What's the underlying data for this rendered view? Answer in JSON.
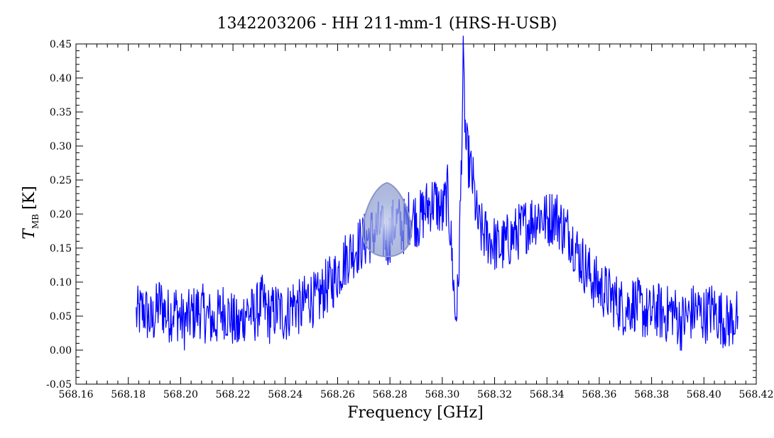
{
  "chart_data": {
    "type": "line",
    "title": "1342203206 - HH 211-mm-1 (HRS-H-USB)",
    "xlabel": "Frequency [GHz]",
    "ylabel_main": "T",
    "ylabel_sub": "MB",
    "ylabel_unit": "[K]",
    "xlim": [
      568.16,
      568.42
    ],
    "ylim": [
      -0.05,
      0.45
    ],
    "x_ticks": [
      "568.16",
      "568.18",
      "568.20",
      "568.22",
      "568.24",
      "568.26",
      "568.28",
      "568.30",
      "568.32",
      "568.34",
      "568.36",
      "568.38",
      "568.40",
      "568.42"
    ],
    "y_ticks": [
      "-0.05",
      "0.00",
      "0.05",
      "0.10",
      "0.15",
      "0.20",
      "0.25",
      "0.30",
      "0.35",
      "0.40",
      "0.45"
    ],
    "series_color": "#0000ff",
    "series": [
      {
        "x": [
          568.183,
          568.186,
          568.189,
          568.192,
          568.195,
          568.198,
          568.201,
          568.204,
          568.207,
          568.21,
          568.213,
          568.216,
          568.219,
          568.222,
          568.225,
          568.228,
          568.231,
          568.234,
          568.237,
          568.24,
          568.243,
          568.246,
          568.249,
          568.252,
          568.255,
          568.258,
          568.261,
          568.264,
          568.267,
          568.27,
          568.273,
          568.276,
          568.279,
          568.282,
          568.285,
          568.288,
          568.291,
          568.294,
          568.297,
          568.3,
          568.302,
          568.303,
          568.304,
          568.305,
          568.306,
          568.307,
          568.308,
          568.309,
          568.31,
          568.311,
          568.312,
          568.313,
          568.314,
          568.316,
          568.319,
          568.322,
          568.325,
          568.328,
          568.331,
          568.334,
          568.337,
          568.34,
          568.343,
          568.346,
          568.349,
          568.352,
          568.355,
          568.358,
          568.361,
          568.364,
          568.367,
          568.37,
          568.373,
          568.376,
          568.379,
          568.382,
          568.385,
          568.388,
          568.391,
          568.394,
          568.397,
          568.4,
          568.403,
          568.406,
          568.409,
          568.413
        ],
        "values": [
          0.05,
          0.06,
          0.04,
          0.07,
          0.05,
          0.06,
          0.04,
          0.05,
          0.06,
          0.05,
          0.04,
          0.06,
          0.05,
          0.03,
          0.06,
          0.05,
          0.07,
          0.05,
          0.06,
          0.05,
          0.07,
          0.06,
          0.08,
          0.07,
          0.09,
          0.1,
          0.12,
          0.14,
          0.15,
          0.16,
          0.17,
          0.18,
          0.16,
          0.19,
          0.18,
          0.2,
          0.19,
          0.21,
          0.22,
          0.2,
          0.23,
          0.18,
          0.12,
          0.05,
          0.08,
          0.22,
          0.42,
          0.3,
          0.28,
          0.26,
          0.24,
          0.2,
          0.18,
          0.17,
          0.16,
          0.15,
          0.16,
          0.17,
          0.18,
          0.19,
          0.2,
          0.19,
          0.2,
          0.18,
          0.17,
          0.14,
          0.12,
          0.1,
          0.09,
          0.08,
          0.07,
          0.06,
          0.07,
          0.06,
          0.05,
          0.06,
          0.05,
          0.06,
          0.04,
          0.05,
          0.06,
          0.05,
          0.06,
          0.05,
          0.04,
          0.05
        ]
      }
    ]
  }
}
